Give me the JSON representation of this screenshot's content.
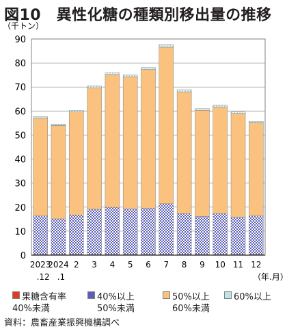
{
  "title": "図10　異性化糖の種類別移出量の推移",
  "unit_label": "（千トン）",
  "x_unit_label": "（年.月）",
  "source": "資料：農畜産業振興機構調べ",
  "chart_data": {
    "type": "bar",
    "stacked": true,
    "categories": [
      [
        "2023",
        ".12"
      ],
      [
        "2024",
        ".1"
      ],
      [
        "2",
        ""
      ],
      [
        "3",
        ""
      ],
      [
        "4",
        ""
      ],
      [
        "5",
        ""
      ],
      [
        "6",
        ""
      ],
      [
        "7",
        ""
      ],
      [
        "8",
        ""
      ],
      [
        "9",
        ""
      ],
      [
        "10",
        ""
      ],
      [
        "11",
        ""
      ],
      [
        "12",
        ""
      ]
    ],
    "ylim": [
      0,
      90
    ],
    "yticks": [
      0,
      10,
      20,
      30,
      40,
      50,
      60,
      70,
      80,
      90
    ],
    "grid": true,
    "legend_position": "bottom",
    "series": [
      {
        "name": "果糖含有率 40%未満",
        "legend_lines": [
          "果糖含有率",
          "40%未満"
        ],
        "color": "#e8381f",
        "values": [
          0.3,
          0.3,
          0.3,
          0.3,
          0.3,
          0.3,
          0.3,
          0.3,
          0.3,
          0.3,
          0.3,
          0.3,
          0.3
        ]
      },
      {
        "name": "40%以上 50%未満",
        "legend_lines": [
          "40%以上",
          "50%未満"
        ],
        "color": "#5b5fb8",
        "values": [
          16.0,
          14.8,
          16.4,
          18.8,
          19.6,
          19.0,
          19.2,
          21.1,
          17.0,
          15.8,
          17.0,
          15.6,
          16.0
        ]
      },
      {
        "name": "50%以上 60%未満",
        "legend_lines": [
          "50%以上",
          "60%未満"
        ],
        "color": "#fbc27f",
        "values": [
          40.7,
          38.9,
          42.9,
          50.6,
          55.3,
          55.0,
          57.8,
          65.2,
          50.7,
          44.2,
          44.4,
          43.1,
          38.8
        ]
      },
      {
        "name": "60%以上",
        "legend_lines": [
          "60%以上",
          ""
        ],
        "color": "#bfe3ea",
        "values": [
          0.6,
          0.6,
          0.6,
          0.7,
          0.7,
          0.7,
          0.8,
          1.0,
          0.9,
          0.7,
          0.7,
          0.6,
          0.5
        ]
      }
    ]
  }
}
